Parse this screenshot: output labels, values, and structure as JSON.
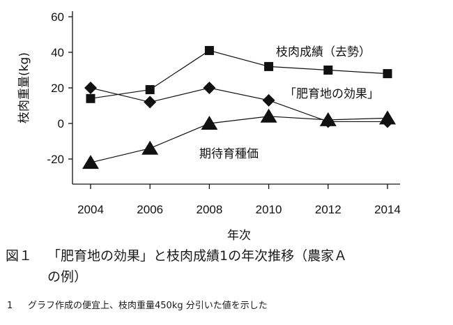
{
  "chart_data": {
    "type": "line",
    "title": "",
    "xlabel": "年次",
    "ylabel": "枝肉重量(kg)",
    "x": [
      2004,
      2006,
      2008,
      2010,
      2012,
      2014
    ],
    "x_ticks": [
      "2004",
      "2006",
      "2008",
      "2010",
      "2012",
      "2014"
    ],
    "ylim": [
      -30,
      60
    ],
    "y_ticks": [
      60,
      40,
      20,
      0,
      -20
    ],
    "y_tick_labels": [
      "60",
      "40",
      "20",
      "0",
      "-20"
    ],
    "grid": false,
    "series": [
      {
        "name": "枝肉成績（去勢）",
        "marker": "square",
        "values": [
          14,
          19,
          41,
          32,
          30,
          28
        ]
      },
      {
        "name": "「肥育地の効果」",
        "marker": "diamond",
        "values": [
          20,
          12,
          20,
          13,
          1,
          1
        ]
      },
      {
        "name": "期待育種価",
        "marker": "triangle",
        "values": [
          -22,
          -14,
          0,
          4,
          2,
          3
        ]
      }
    ]
  },
  "caption": {
    "figure_label": "図１",
    "title_line1": "「肥育地の効果」と枝肉成績1の年次推移（農家Ａ",
    "title_line2": "の例）"
  },
  "footnote": {
    "number": "1",
    "text": "グラフ作成の便宜上、枝肉重量450kg 分引いた値を示した"
  },
  "colors": {
    "line": "#111111",
    "marker": "#111111",
    "axis": "#111111"
  }
}
